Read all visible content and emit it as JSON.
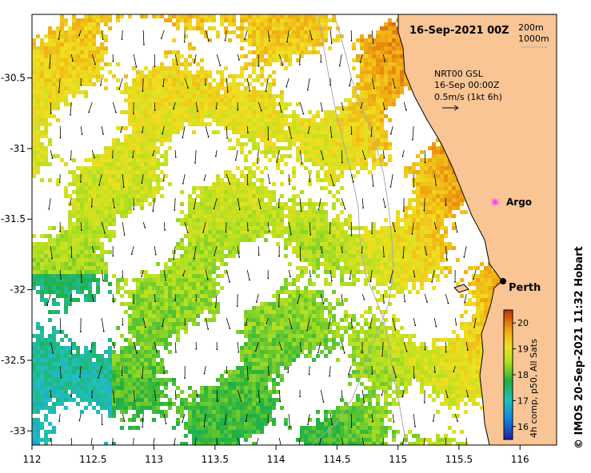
{
  "title": "16-Sep-2021 00Z",
  "bathymetry_legend": [
    "200m",
    "1000m"
  ],
  "currents_legend": {
    "line1": "NRT00 GSL",
    "line2": "16-Sep 00:00Z",
    "line3": "0.5m/s (1kt 6h)"
  },
  "places": {
    "argo": "Argo",
    "perth": "Perth"
  },
  "side_credit": "© IMOS 20-Sep-2021 11:32 Hobart",
  "colorbar": {
    "label": "4h comp, p50, All Sats",
    "ticks": [
      "20",
      "19",
      "18",
      "17",
      "16"
    ],
    "min": 15.5,
    "max": 20.5
  },
  "axes": {
    "x_ticks": [
      "112",
      "112.5",
      "113",
      "113.5",
      "114",
      "114.5",
      "115",
      "115.5",
      "116"
    ],
    "y_ticks": [
      "-30.5",
      "-31",
      "-31.5",
      "-32",
      "-32.5",
      "-33"
    ],
    "lon_range": [
      112,
      116.3
    ],
    "lat_range": [
      -33.1,
      -30.05
    ]
  },
  "colors": {
    "land": "#f9c595",
    "warm": "#b03010",
    "cool": "#20b040"
  }
}
